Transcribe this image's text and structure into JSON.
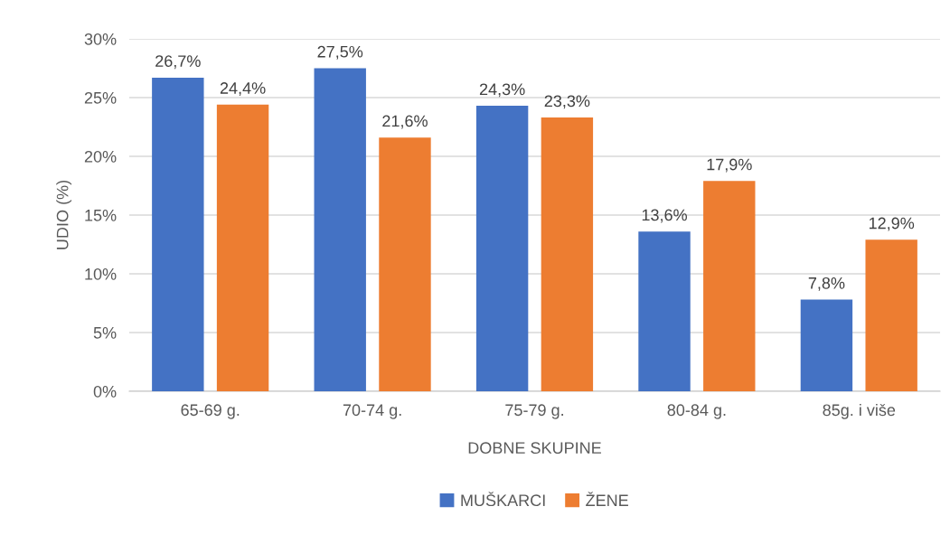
{
  "chart_data": {
    "type": "bar",
    "xlabel": "DOBNE SKUPINE",
    "ylabel": "UDIO (%)",
    "categories": [
      "65-69 g.",
      "70-74 g.",
      "75-79 g.",
      "80-84 g.",
      "85g. i više"
    ],
    "series": [
      {
        "name": "MUŠKARCI",
        "color": "#4472c4",
        "values": [
          26.7,
          27.5,
          24.3,
          13.6,
          7.8
        ],
        "value_labels": [
          "26,7%",
          "27,5%",
          "24,3%",
          "13,6%",
          "7,8%"
        ]
      },
      {
        "name": "ŽENE",
        "color": "#ed7d31",
        "values": [
          24.4,
          21.6,
          23.3,
          17.9,
          12.9
        ],
        "value_labels": [
          "24,4%",
          "21,6%",
          "23,3%",
          "17,9%",
          "12,9%"
        ]
      }
    ],
    "ylim": [
      0,
      30
    ],
    "yticks": [
      {
        "value": 0,
        "label": "0%"
      },
      {
        "value": 5,
        "label": "5%"
      },
      {
        "value": 10,
        "label": "10%"
      },
      {
        "value": 15,
        "label": "15%"
      },
      {
        "value": 20,
        "label": "20%"
      },
      {
        "value": 25,
        "label": "25%"
      },
      {
        "value": 30,
        "label": "30%"
      }
    ],
    "grid": "y",
    "legend": "bottom"
  }
}
